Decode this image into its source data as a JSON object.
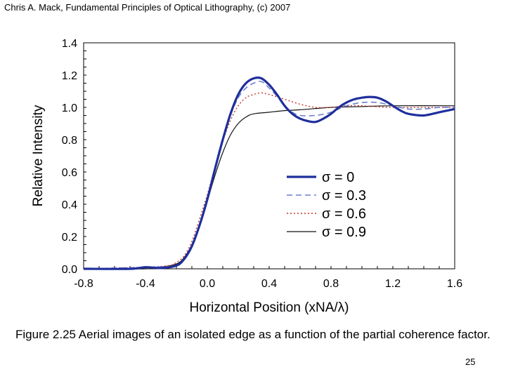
{
  "header": "Chris A. Mack, Fundamental Principles of Optical Lithography, (c) 2007",
  "caption": "Figure 2.25  Aerial images of an isolated edge as a function of the partial coherence factor.",
  "page_number": "25",
  "chart_data": {
    "type": "line",
    "title": "",
    "xlabel": "Horizontal Position (xNA/λ)",
    "ylabel": "Relative Intensity",
    "xlim": [
      -0.8,
      1.6
    ],
    "ylim": [
      0.0,
      1.4
    ],
    "x_ticks": [
      "-0.8",
      "-0.4",
      "0.0",
      "0.4",
      "0.8",
      "1.2",
      "1.6"
    ],
    "y_ticks": [
      "1.4",
      "1.2",
      "1.0",
      "0.8",
      "0.6",
      "0.4",
      "0.2",
      "0.0"
    ],
    "legend_position": "lower-right",
    "series": [
      {
        "name": "σ = 0",
        "color": "#1f2f9c",
        "style": "thick-solid",
        "points": [
          [
            -0.8,
            0.0
          ],
          [
            -0.5,
            0.0
          ],
          [
            -0.4,
            0.01
          ],
          [
            -0.3,
            0.005
          ],
          [
            -0.2,
            0.02
          ],
          [
            -0.15,
            0.06
          ],
          [
            -0.1,
            0.14
          ],
          [
            -0.05,
            0.27
          ],
          [
            0.0,
            0.43
          ],
          [
            0.05,
            0.62
          ],
          [
            0.1,
            0.8
          ],
          [
            0.15,
            0.96
          ],
          [
            0.2,
            1.08
          ],
          [
            0.25,
            1.15
          ],
          [
            0.3,
            1.18
          ],
          [
            0.35,
            1.18
          ],
          [
            0.4,
            1.14
          ],
          [
            0.45,
            1.08
          ],
          [
            0.5,
            1.01
          ],
          [
            0.55,
            0.96
          ],
          [
            0.6,
            0.93
          ],
          [
            0.65,
            0.915
          ],
          [
            0.7,
            0.91
          ],
          [
            0.75,
            0.93
          ],
          [
            0.8,
            0.96
          ],
          [
            0.85,
            1.0
          ],
          [
            0.9,
            1.03
          ],
          [
            0.95,
            1.05
          ],
          [
            1.0,
            1.06
          ],
          [
            1.05,
            1.065
          ],
          [
            1.1,
            1.06
          ],
          [
            1.15,
            1.04
          ],
          [
            1.2,
            1.01
          ],
          [
            1.25,
            0.98
          ],
          [
            1.3,
            0.96
          ],
          [
            1.4,
            0.95
          ],
          [
            1.5,
            0.97
          ],
          [
            1.6,
            0.99
          ]
        ]
      },
      {
        "name": "σ = 0.3",
        "color": "#6a7fd0",
        "style": "dashed",
        "points": [
          [
            -0.8,
            0.0
          ],
          [
            -0.4,
            0.01
          ],
          [
            -0.2,
            0.02
          ],
          [
            -0.15,
            0.06
          ],
          [
            -0.1,
            0.15
          ],
          [
            -0.05,
            0.28
          ],
          [
            0.0,
            0.44
          ],
          [
            0.05,
            0.62
          ],
          [
            0.1,
            0.8
          ],
          [
            0.15,
            0.95
          ],
          [
            0.2,
            1.06
          ],
          [
            0.25,
            1.12
          ],
          [
            0.3,
            1.15
          ],
          [
            0.35,
            1.16
          ],
          [
            0.4,
            1.12
          ],
          [
            0.45,
            1.07
          ],
          [
            0.5,
            1.01
          ],
          [
            0.55,
            0.97
          ],
          [
            0.6,
            0.95
          ],
          [
            0.7,
            0.95
          ],
          [
            0.8,
            0.97
          ],
          [
            0.9,
            1.01
          ],
          [
            1.0,
            1.03
          ],
          [
            1.1,
            1.03
          ],
          [
            1.2,
            1.01
          ],
          [
            1.3,
            0.99
          ],
          [
            1.4,
            0.99
          ],
          [
            1.5,
            1.0
          ],
          [
            1.6,
            1.0
          ]
        ]
      },
      {
        "name": "σ = 0.6",
        "color": "#c8352b",
        "style": "dotted",
        "points": [
          [
            -0.8,
            0.0
          ],
          [
            -0.4,
            0.01
          ],
          [
            -0.25,
            0.02
          ],
          [
            -0.2,
            0.04
          ],
          [
            -0.15,
            0.08
          ],
          [
            -0.1,
            0.17
          ],
          [
            -0.05,
            0.31
          ],
          [
            0.0,
            0.46
          ],
          [
            0.05,
            0.63
          ],
          [
            0.1,
            0.79
          ],
          [
            0.15,
            0.92
          ],
          [
            0.2,
            1.01
          ],
          [
            0.25,
            1.06
          ],
          [
            0.3,
            1.08
          ],
          [
            0.35,
            1.09
          ],
          [
            0.4,
            1.08
          ],
          [
            0.5,
            1.05
          ],
          [
            0.6,
            1.02
          ],
          [
            0.7,
            1.0
          ],
          [
            0.8,
            1.0
          ],
          [
            0.9,
            1.01
          ],
          [
            1.0,
            1.01
          ],
          [
            1.2,
            1.0
          ],
          [
            1.6,
            1.0
          ]
        ]
      },
      {
        "name": "σ = 0.9",
        "color": "#111111",
        "style": "thin-solid",
        "points": [
          [
            -0.8,
            0.0
          ],
          [
            -0.4,
            0.0
          ],
          [
            -0.3,
            0.01
          ],
          [
            -0.2,
            0.03
          ],
          [
            -0.15,
            0.07
          ],
          [
            -0.1,
            0.15
          ],
          [
            -0.05,
            0.27
          ],
          [
            0.0,
            0.42
          ],
          [
            0.05,
            0.58
          ],
          [
            0.1,
            0.72
          ],
          [
            0.15,
            0.83
          ],
          [
            0.2,
            0.9
          ],
          [
            0.25,
            0.94
          ],
          [
            0.3,
            0.96
          ],
          [
            0.4,
            0.97
          ],
          [
            0.5,
            0.98
          ],
          [
            0.6,
            0.985
          ],
          [
            0.8,
            1.0
          ],
          [
            1.0,
            1.005
          ],
          [
            1.2,
            1.01
          ],
          [
            1.6,
            1.01
          ]
        ]
      }
    ]
  }
}
